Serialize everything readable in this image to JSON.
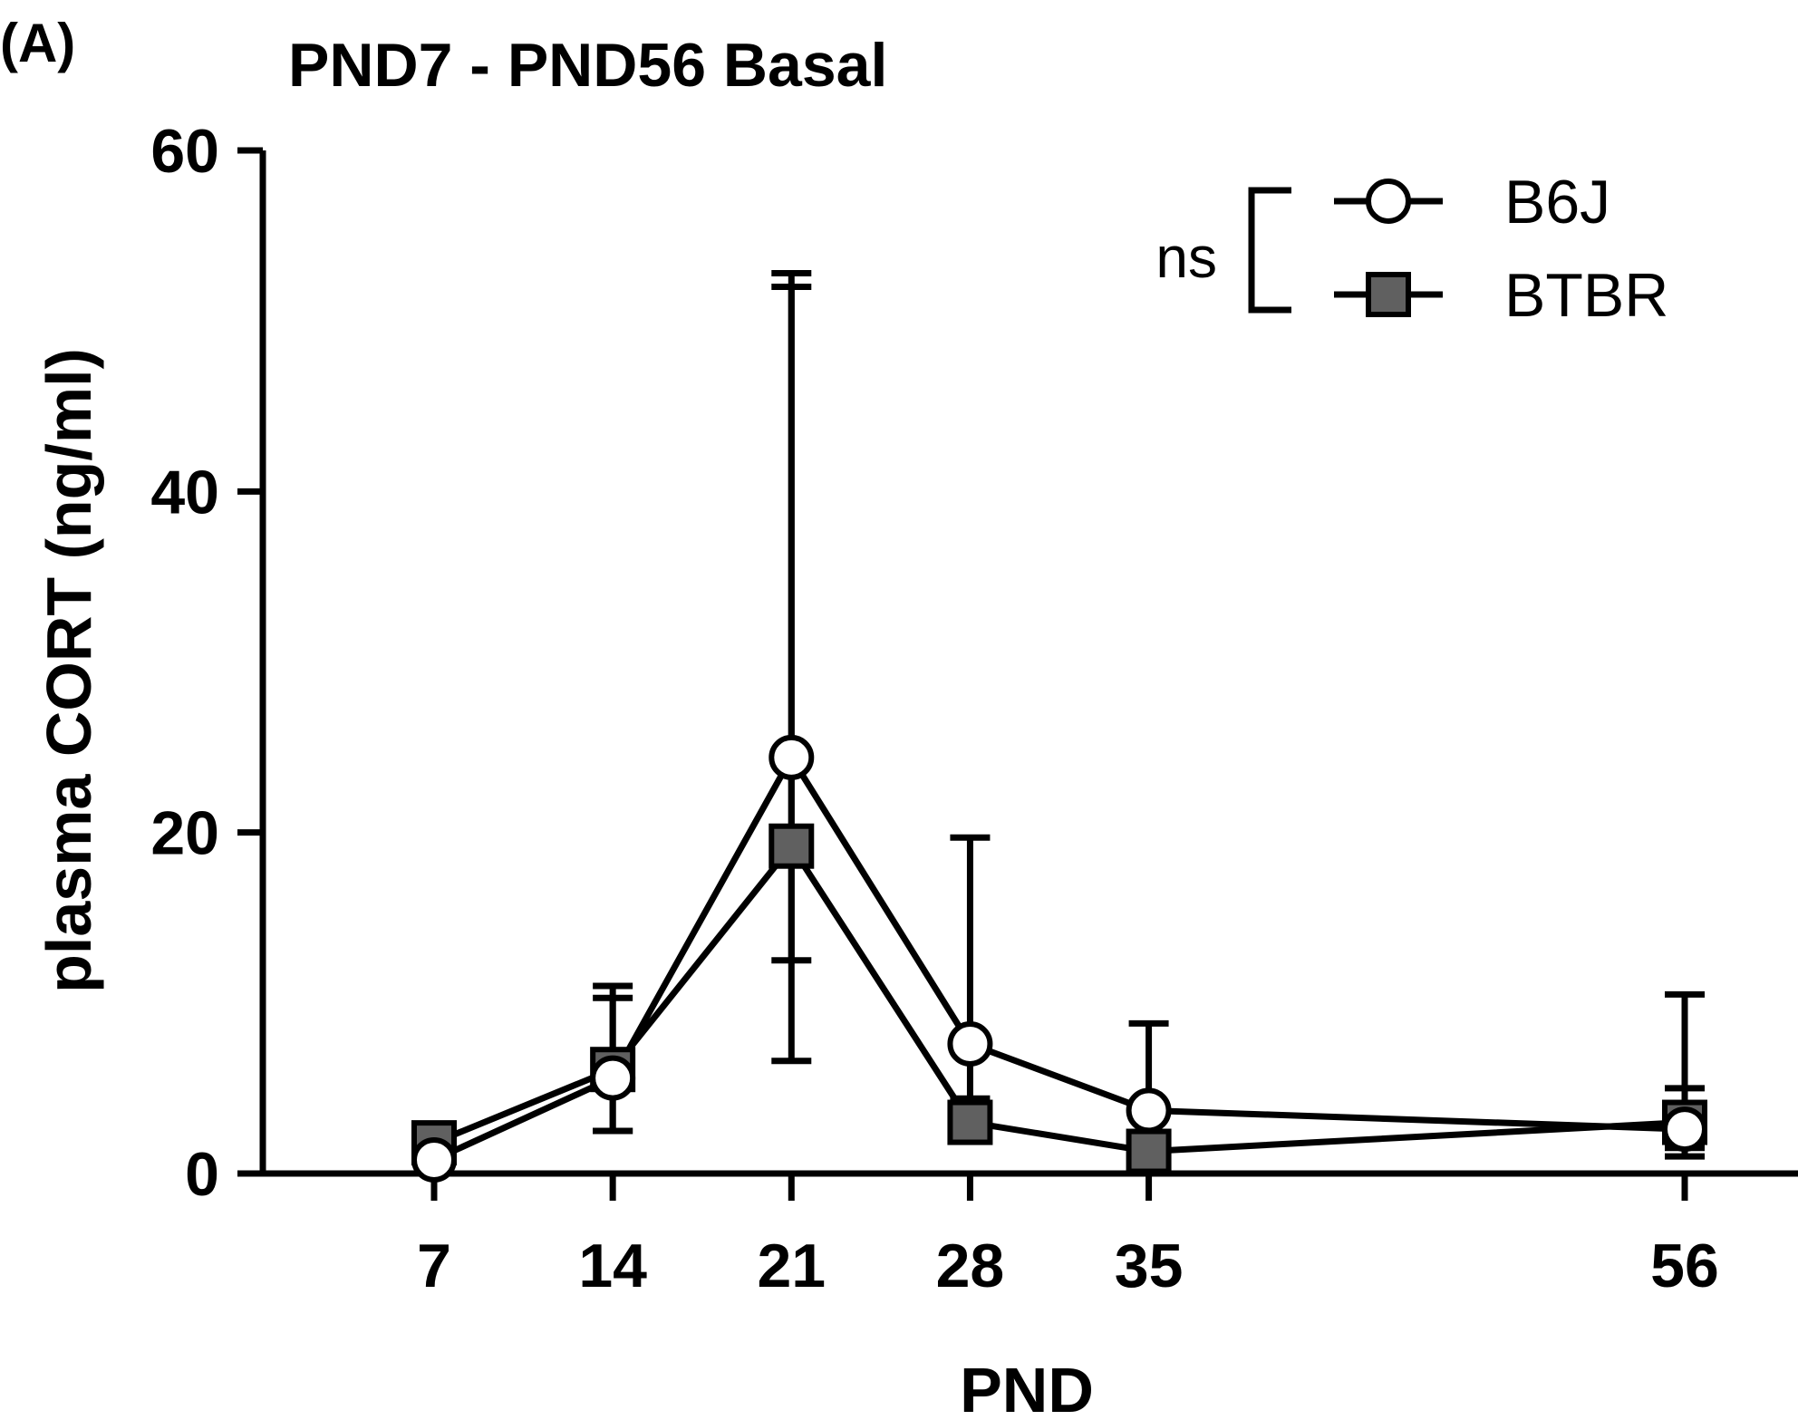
{
  "panel_label": "(A)",
  "chart_data": {
    "type": "line",
    "title": "PND7 - PND56 Basal",
    "xlabel": "PND",
    "ylabel": "plasma CORT (ng/ml)",
    "x": [
      7,
      14,
      21,
      28,
      35,
      56
    ],
    "ylim": [
      0,
      60
    ],
    "yticks": [
      0,
      20,
      40,
      60
    ],
    "grid": false,
    "legend_position": "top-right",
    "series": [
      {
        "name": "B6J",
        "marker": "circle",
        "fill": "#ffffff",
        "values": [
          0.8,
          5.6,
          24.4,
          7.6,
          3.7,
          2.6
        ],
        "error_upper": [
          1.0,
          10.3,
          52.0,
          19.7,
          8.8,
          10.5
        ],
        "error_lower": [
          0.6,
          2.5,
          6.6,
          2.2,
          1.0,
          1.0
        ]
      },
      {
        "name": "BTBR",
        "marker": "square",
        "fill": "#606060",
        "values": [
          1.8,
          6.1,
          19.2,
          3.0,
          1.3,
          3.0
        ],
        "error_upper": [
          2.3,
          11.0,
          52.8,
          4.4,
          1.8,
          5.0
        ],
        "error_lower": [
          1.3,
          2.5,
          12.5,
          2.0,
          0.8,
          1.5
        ]
      }
    ],
    "annotation": "ns"
  }
}
